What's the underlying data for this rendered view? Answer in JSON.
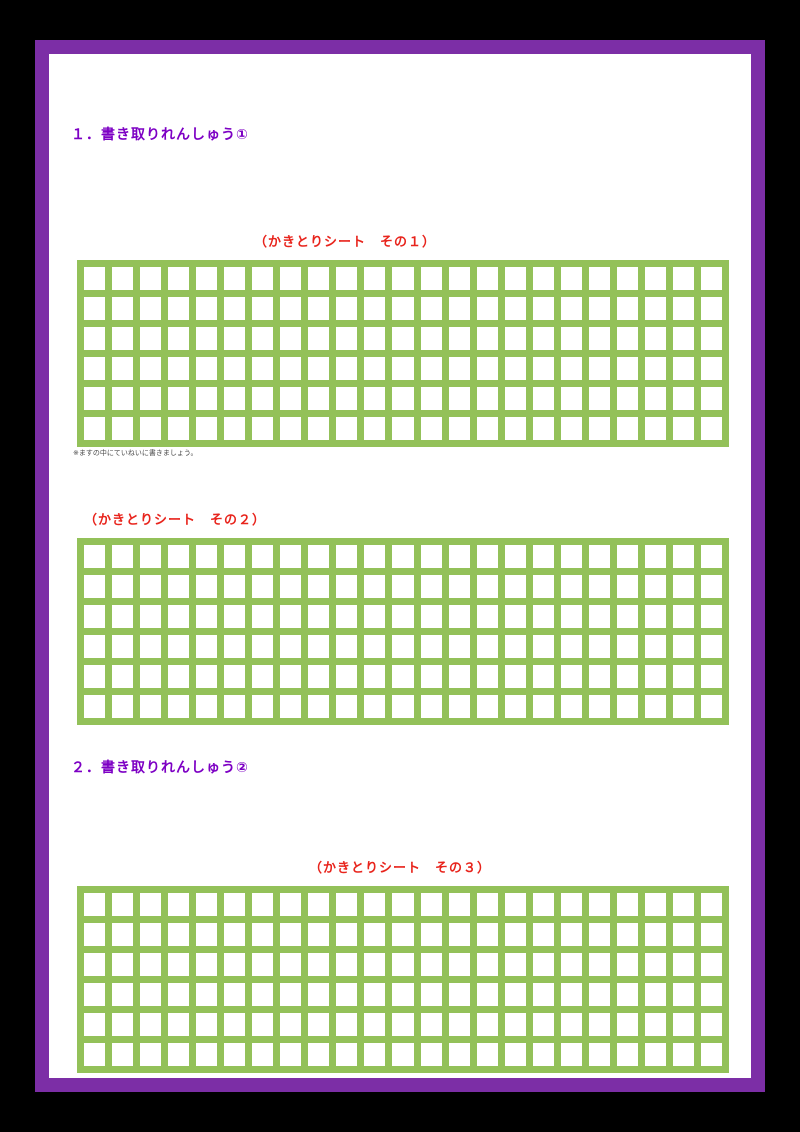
{
  "colors": {
    "frame-purple": "#7c2ea6",
    "heading-purple": "#7d00c4",
    "title-red": "#e8241c",
    "grid-green": "#93c159"
  },
  "texts": {
    "section1_heading": "１．書き取りれんしゅう①",
    "grid1_title": "（かきとりシート　その１）",
    "grid1_note": "※ますの中にていねいに書きましょう。",
    "grid2_title": "（かきとりシート　その２）",
    "section2_heading": "２．書き取りれんしゅう②",
    "grid3_title": "（かきとりシート　その３）"
  },
  "grids": {
    "grid1": {
      "rows": 6,
      "cols": 23
    },
    "grid2": {
      "rows": 6,
      "cols": 23
    },
    "grid3": {
      "rows": 6,
      "cols": 23
    }
  }
}
